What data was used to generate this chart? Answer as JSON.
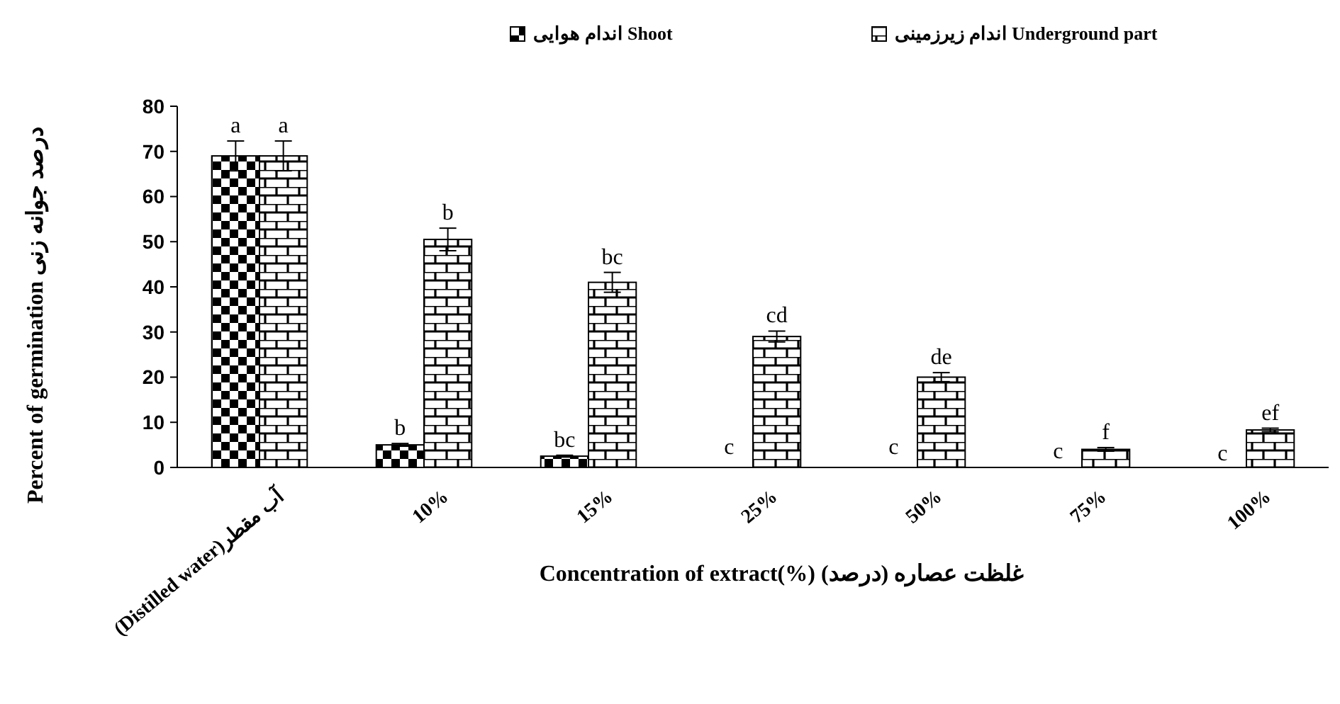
{
  "chart_data": {
    "type": "bar",
    "xlabel": "Concentration of extract(%) غلظت عصاره (درصد)",
    "ylabel": "Percent of germination  درصد جوانه زنی",
    "categories": [
      "(Distilled water)آب مقطر",
      "10%",
      "15%",
      "25%",
      "50%",
      "75%",
      "100%"
    ],
    "series": [
      {
        "name": "اندام هوایی Shoot",
        "color": "#000000",
        "values": [
          69,
          5,
          2.5,
          0,
          0,
          0,
          0
        ],
        "errors": [
          3.3,
          0.3,
          0.2,
          null,
          null,
          null,
          null
        ],
        "value_labels": [
          "a",
          "b",
          "bc",
          null,
          null,
          null,
          null
        ]
      },
      {
        "name": "اندام زیرزمینی Underground part",
        "color": "#000000",
        "values": [
          69,
          50.5,
          41,
          29,
          20,
          4,
          8.3
        ],
        "errors": [
          3.3,
          2.5,
          2.2,
          1.2,
          1,
          0.4,
          0.4
        ],
        "value_labels": [
          "a",
          "b",
          "bc",
          "cd",
          "de",
          "f",
          "ef"
        ]
      }
    ],
    "ylim": [
      0,
      80
    ],
    "yticks": [
      0,
      10,
      20,
      30,
      40,
      50,
      60,
      70,
      80
    ],
    "annotations": [
      {
        "text": "c",
        "x": "25%",
        "y": 3
      },
      {
        "text": "c",
        "x": "50%",
        "y": 3
      },
      {
        "text": "c",
        "x": "75%",
        "y": 2
      },
      {
        "text": "c",
        "x": "100%",
        "y": 1.5
      }
    ],
    "grid": false,
    "legend": "top"
  }
}
